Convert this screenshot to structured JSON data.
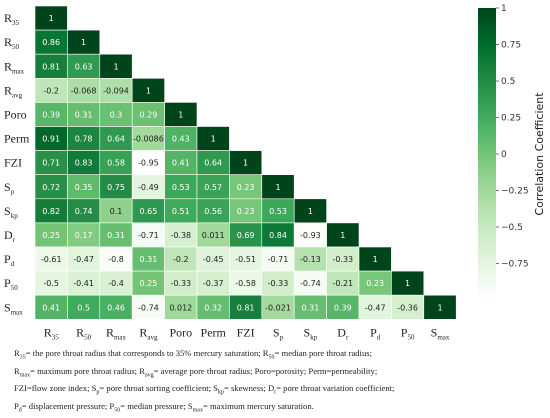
{
  "chart_data": {
    "type": "heatmap",
    "variables": [
      {
        "base": "R",
        "sub": "35"
      },
      {
        "base": "R",
        "sub": "50"
      },
      {
        "base": "R",
        "sub": "max"
      },
      {
        "base": "R",
        "sub": "avg"
      },
      {
        "base": "Poro",
        "sub": ""
      },
      {
        "base": "Perm",
        "sub": ""
      },
      {
        "base": "FZI",
        "sub": ""
      },
      {
        "base": "S",
        "sub": "p"
      },
      {
        "base": "S",
        "sub": "kp"
      },
      {
        "base": "D",
        "sub": "r"
      },
      {
        "base": "P",
        "sub": "d"
      },
      {
        "base": "P",
        "sub": "50"
      },
      {
        "base": "S",
        "sub": "max"
      }
    ],
    "matrix": [
      [
        "1"
      ],
      [
        "0.86",
        "1"
      ],
      [
        "0.81",
        "0.63",
        "1"
      ],
      [
        "-0.2",
        "-0.068",
        "-0.094",
        "1"
      ],
      [
        "0.39",
        "0.31",
        "0.3",
        "0.29",
        "1"
      ],
      [
        "0.91",
        "0.78",
        "0.64",
        "-0.0086",
        "0.43",
        "1"
      ],
      [
        "0.71",
        "0.83",
        "0.58",
        "-0.95",
        "0.41",
        "0.64",
        "1"
      ],
      [
        "0.72",
        "0.35",
        "0.75",
        "-0.49",
        "0.53",
        "0.57",
        "0.23",
        "1"
      ],
      [
        "0.82",
        "0.74",
        "0.1",
        "0.65",
        "0.51",
        "0.56",
        "0.23",
        "0.53",
        "1"
      ],
      [
        "0.25",
        "0.17",
        "0.31",
        "-0.71",
        "-0.38",
        "0.011",
        "0.69",
        "0.84",
        "-0.93",
        "1"
      ],
      [
        "-0.61",
        "-0.47",
        "-0.8",
        "0.31",
        "-0.2",
        "-0.45",
        "-0.51",
        "-0.71",
        "-0.13",
        "-0.33",
        "1"
      ],
      [
        "-0.5",
        "-0.41",
        "-0.4",
        "0.25",
        "-0.33",
        "-0.37",
        "-0.58",
        "-0.33",
        "-0.74",
        "-0.21",
        "0.23",
        "1"
      ],
      [
        "0.41",
        "0.5",
        "0.46",
        "-0.74",
        "0.012",
        "0.32",
        "0.81",
        "-0.021",
        "0.31",
        "0.39",
        "-0.47",
        "-0.36",
        "1"
      ]
    ],
    "colorbar": {
      "title": "Correlation Coefficient",
      "range": [
        -1,
        1
      ],
      "ticks": [
        "1",
        "0.75",
        "0.5",
        "0.25",
        "0",
        "−0.25",
        "−0.5",
        "−0.75"
      ],
      "tick_values": [
        1,
        0.75,
        0.5,
        0.25,
        0,
        -0.25,
        -0.5,
        -0.75
      ],
      "color_low": "#ffffff",
      "color_high": "#00441b"
    }
  },
  "caption": {
    "lines": [
      [
        {
          "t": "R"
        },
        {
          "s": "35"
        },
        {
          "t": "= the pore throat radius that corresponds to 35% mercury saturation; R"
        },
        {
          "s": "50"
        },
        {
          "t": "= median pore throat radius;"
        }
      ],
      [
        {
          "t": "R"
        },
        {
          "s": "max"
        },
        {
          "t": "= maximum pore throat radius; R"
        },
        {
          "s": "avg"
        },
        {
          "t": "= average pore throat radius; Poro=porosity; Perm=permeability;"
        }
      ],
      [
        {
          "t": "FZI=flow zone index; S"
        },
        {
          "s": "p"
        },
        {
          "t": "= pore throat sorting coefficient; S"
        },
        {
          "s": "kp"
        },
        {
          "t": "= skewness; D"
        },
        {
          "s": "r"
        },
        {
          "t": "= pore throat variation coefficient;"
        }
      ],
      [
        {
          "t": "P"
        },
        {
          "s": "d"
        },
        {
          "t": "= displacement pressure; P"
        },
        {
          "s": "50"
        },
        {
          "t": "= median pressure; S"
        },
        {
          "s": "max"
        },
        {
          "t": "= maximum mercury saturation."
        }
      ]
    ]
  }
}
